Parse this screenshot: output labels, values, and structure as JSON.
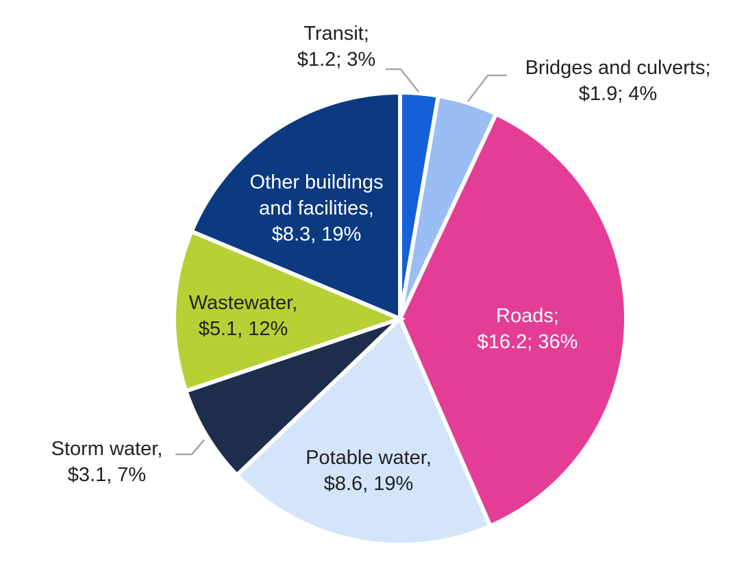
{
  "chart_data": {
    "type": "pie",
    "slices": [
      {
        "category": "Transit",
        "value": 1.2,
        "percent": 3,
        "color": "#1560d8",
        "label_lines": [
          "Transit;",
          "$1.2; 3%"
        ],
        "label_color": "#222222"
      },
      {
        "category": "Bridges and culverts",
        "value": 1.9,
        "percent": 4,
        "color": "#9bbdf5",
        "label_lines": [
          "Bridges and culverts;",
          "$1.9; 4%"
        ],
        "label_color": "#222222"
      },
      {
        "category": "Roads",
        "value": 16.2,
        "percent": 36,
        "color": "#e33d96",
        "label_lines": [
          "Roads;",
          "$16.2; 36%"
        ],
        "label_color": "#ffffff"
      },
      {
        "category": "Potable water",
        "value": 8.6,
        "percent": 19,
        "color": "#d4e4fa",
        "label_lines": [
          "Potable water,",
          "$8.6, 19%"
        ],
        "label_color": "#222222"
      },
      {
        "category": "Storm water",
        "value": 3.1,
        "percent": 7,
        "color": "#1e2d4b",
        "label_lines": [
          "Storm water,",
          "$3.1, 7%"
        ],
        "label_color": "#222222"
      },
      {
        "category": "Wastewater",
        "value": 5.1,
        "percent": 12,
        "color": "#b5d135",
        "label_lines": [
          "Wastewater,",
          "$5.1, 12%"
        ],
        "label_color": "#222222"
      },
      {
        "category": "Other buildings and facilities",
        "value": 8.3,
        "percent": 19,
        "color": "#0c3a80",
        "label_lines": [
          "Other buildings",
          "and facilities,",
          "$8.3, 19%"
        ],
        "label_color": "#ffffff"
      }
    ],
    "start_angle": "12 o'clock",
    "direction": "clockwise",
    "legend": "none"
  }
}
